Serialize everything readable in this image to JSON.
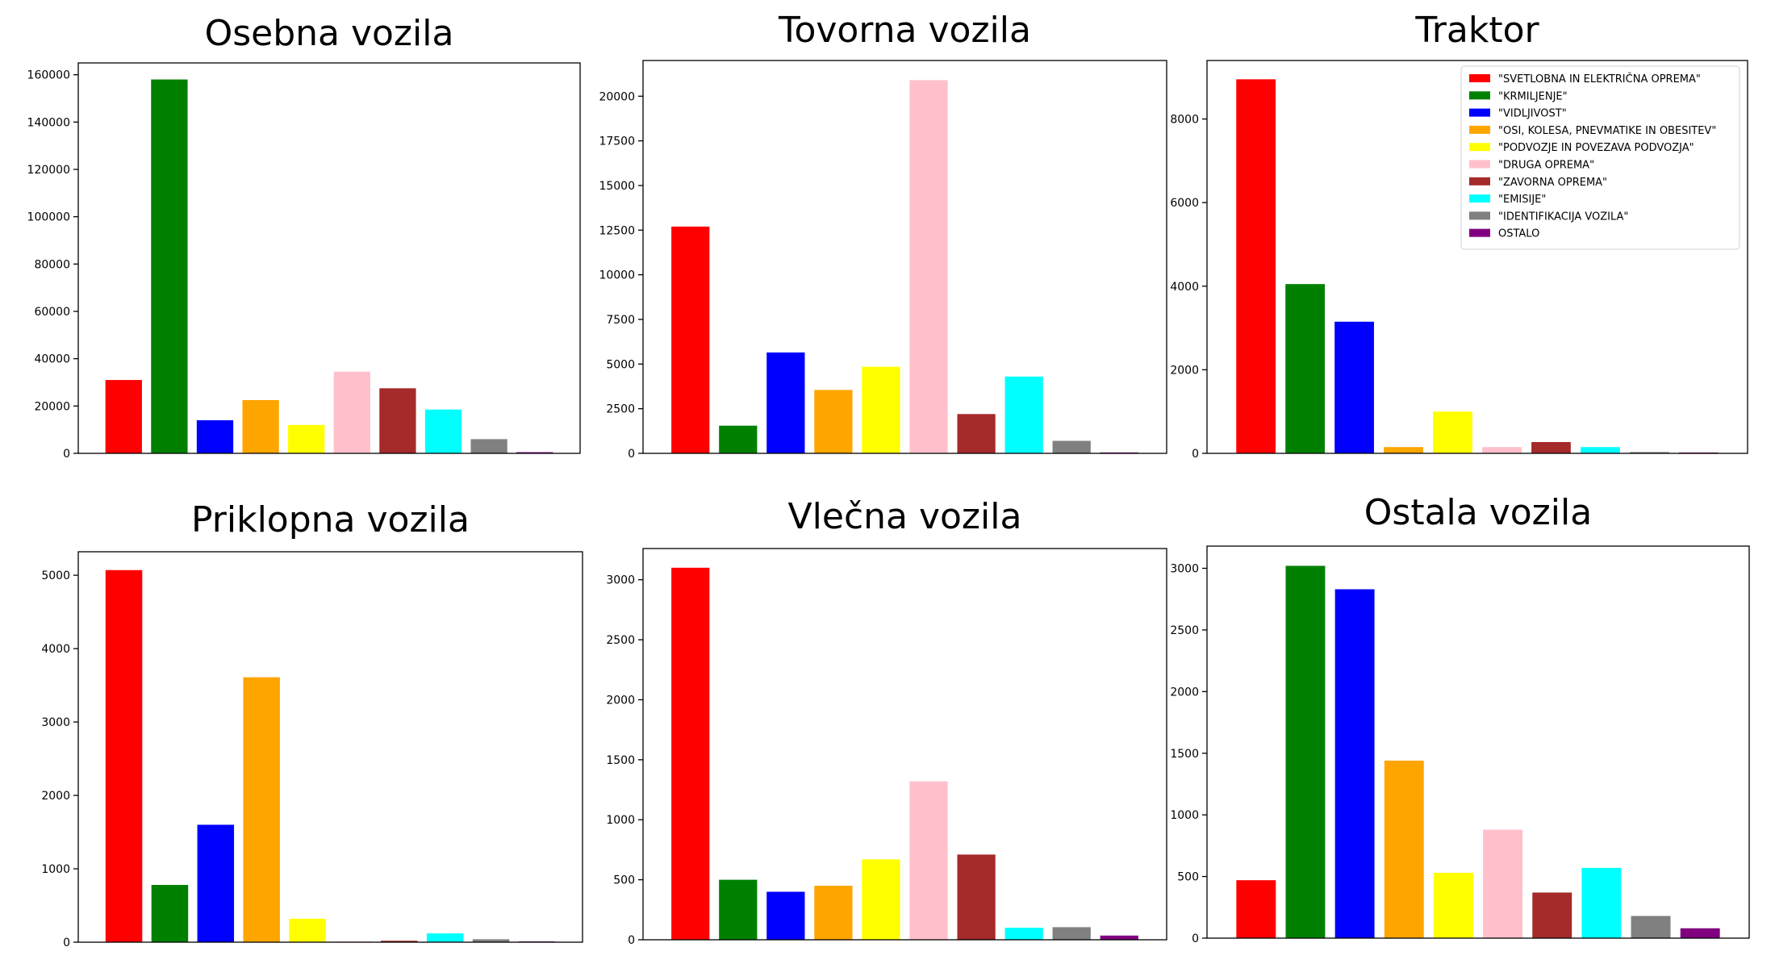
{
  "categories": [
    "\"SVETLOBNA IN ELEKTRIČNA OPREMA\"",
    "\"KRMILJENJE\"",
    "\"VIDLJIVOST\"",
    "\"OSI, KOLESA, PNEVMATIKE IN OBESITEV\"",
    "\"PODVOZJE IN POVEZAVA PODVOZJA\"",
    "\"DRUGA OPREMA\"",
    "\"ZAVORNA OPREMA\"",
    "\"EMISIJE\"",
    "\"IDENTIFIKACIJA VOZILA\"",
    "OSTALO"
  ],
  "colors": [
    "#ff0000",
    "#008000",
    "#0000ff",
    "#ffa500",
    "#ffff00",
    "#ffc0cb",
    "#a52a2a",
    "#00ffff",
    "#808080",
    "#800080"
  ],
  "chart_data": [
    {
      "type": "bar",
      "title": "Osebna vozila",
      "values": [
        31000,
        158000,
        14000,
        22500,
        12000,
        34500,
        27500,
        18500,
        6000,
        500
      ],
      "ylim": [
        0,
        165000
      ],
      "yticks": [
        0,
        20000,
        40000,
        60000,
        80000,
        100000,
        120000,
        140000,
        160000
      ],
      "xlabel": "",
      "ylabel": "",
      "grid": false,
      "legend": false
    },
    {
      "type": "bar",
      "title": "Tovorna vozila",
      "values": [
        12700,
        1550,
        5650,
        3550,
        4850,
        20900,
        2200,
        4300,
        700,
        50
      ],
      "ylim": [
        0,
        22000
      ],
      "yticks": [
        0,
        2500,
        5000,
        7500,
        10000,
        12500,
        15000,
        17500,
        20000
      ],
      "xlabel": "",
      "ylabel": "",
      "grid": false,
      "legend": false
    },
    {
      "type": "bar",
      "title": "Traktor",
      "values": [
        8950,
        4050,
        3150,
        150,
        1000,
        150,
        270,
        150,
        30,
        20
      ],
      "ylim": [
        0,
        9400
      ],
      "yticks": [
        0,
        2000,
        4000,
        6000,
        8000
      ],
      "xlabel": "",
      "ylabel": "",
      "grid": false,
      "legend": true,
      "legend_loc": "upper right"
    },
    {
      "type": "bar",
      "title": "Priklopna vozila",
      "values": [
        5070,
        780,
        1600,
        3610,
        320,
        10,
        20,
        120,
        40,
        10
      ],
      "ylim": [
        0,
        5320
      ],
      "yticks": [
        0,
        1000,
        2000,
        3000,
        4000,
        5000
      ],
      "xlabel": "",
      "ylabel": "",
      "grid": false,
      "legend": false
    },
    {
      "type": "bar",
      "title": "Vlečna vozila",
      "values": [
        3100,
        500,
        400,
        450,
        670,
        1320,
        710,
        100,
        105,
        35
      ],
      "ylim": [
        0,
        3260
      ],
      "yticks": [
        0,
        500,
        1000,
        1500,
        2000,
        2500,
        3000
      ],
      "xlabel": "",
      "ylabel": "",
      "grid": false,
      "legend": false
    },
    {
      "type": "bar",
      "title": "Ostala vozila",
      "values": [
        470,
        3020,
        2830,
        1440,
        530,
        880,
        370,
        570,
        180,
        80
      ],
      "ylim": [
        0,
        3180
      ],
      "yticks": [
        0,
        500,
        1000,
        1500,
        2000,
        2500,
        3000
      ],
      "xlabel": "",
      "ylabel": "",
      "grid": false,
      "legend": false
    }
  ]
}
